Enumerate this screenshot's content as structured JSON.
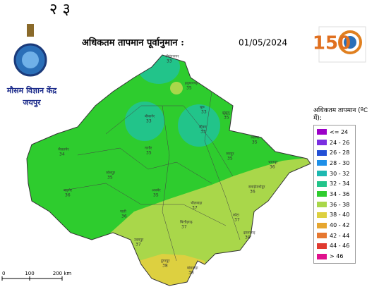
{
  "top_text": "२ ३",
  "header": {
    "title": "अधिकतम तापमान पूर्वानुमान :",
    "date": "01/05/2024"
  },
  "logo": {
    "org": "मौसम विज्ञान केंद्र",
    "city": "जयपुर",
    "anniversary": "150"
  },
  "legend": {
    "title": "अधिकतम तापमान (ºC में):",
    "items": [
      {
        "label": "<= 24",
        "color": "#9b00c8"
      },
      {
        "label": "24 - 26",
        "color": "#7a2ee0"
      },
      {
        "label": "26 - 28",
        "color": "#2350d6"
      },
      {
        "label": "28 - 30",
        "color": "#1e8fe8"
      },
      {
        "label": "30 - 32",
        "color": "#1cb8b0"
      },
      {
        "label": "32 - 34",
        "color": "#22c48a"
      },
      {
        "label": "34 - 36",
        "color": "#2ecc2e"
      },
      {
        "label": "36 - 38",
        "color": "#a9d74a"
      },
      {
        "label": "38 - 40",
        "color": "#ddd040"
      },
      {
        "label": "40 - 42",
        "color": "#e6a630"
      },
      {
        "label": "42 - 44",
        "color": "#e67830"
      },
      {
        "label": "44 - 46",
        "color": "#e03a30"
      },
      {
        "label": "> 46",
        "color": "#e0108c"
      }
    ]
  },
  "scale": {
    "labels": [
      "0",
      "100",
      "200 km"
    ]
  },
  "districts": [
    {
      "name": "श्रीगंगानगर",
      "value": 33
    },
    {
      "name": "हनुमानगढ़",
      "value": 35
    },
    {
      "name": "बीकानेर",
      "value": 33
    },
    {
      "name": "चूरू",
      "value": 33
    },
    {
      "name": "सीकर",
      "value": 33
    },
    {
      "name": "झुंझुनूं",
      "value": 35
    },
    {
      "name": "जैसलमेर",
      "value": 34
    },
    {
      "name": "जोधपुर",
      "value": 35
    },
    {
      "name": "नागौर",
      "value": 35
    },
    {
      "name": "जयपुर",
      "value": 35
    },
    {
      "name": "अलवर",
      "value": 35
    },
    {
      "name": "भरतपुर",
      "value": 36
    },
    {
      "name": "बाड़मेर",
      "value": 36
    },
    {
      "name": "अजमेर",
      "value": 35
    },
    {
      "name": "सवाईमाधोपुर",
      "value": 36
    },
    {
      "name": "पाली",
      "value": 36
    },
    {
      "name": "भीलवाड़ा",
      "value": 37
    },
    {
      "name": "कोटा",
      "value": 37
    },
    {
      "name": "उदयपुर",
      "value": 37
    },
    {
      "name": "चित्तौड़गढ़",
      "value": 37
    },
    {
      "name": "झालावाड़",
      "value": 38
    },
    {
      "name": "डूंगरपुर",
      "value": 38
    },
    {
      "name": "बांसवाड़ा",
      "value": 38
    }
  ]
}
